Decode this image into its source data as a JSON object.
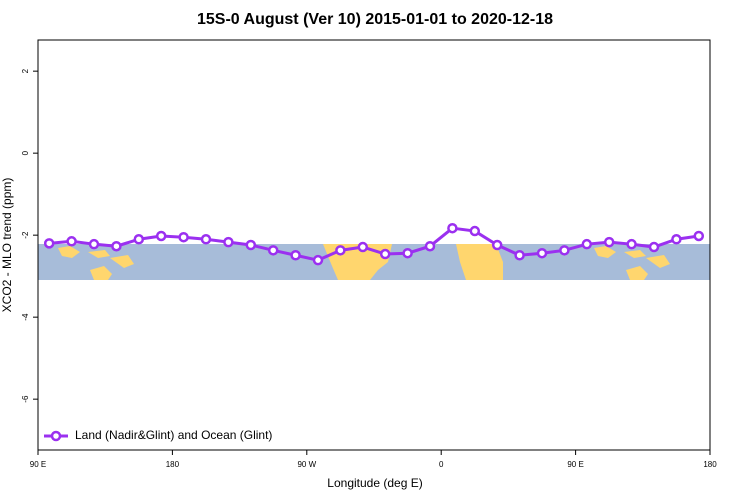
{
  "chart_data": {
    "type": "line",
    "title": "15S-0 August (Ver 10)   2015-01-01 to 2020-12-18",
    "x_label": "Longitude (deg E)",
    "y_label": "XCO2 - MLO trend (ppm)",
    "xlim": [
      90,
      540
    ],
    "xticks": [
      {
        "value": 90,
        "label": "90 E"
      },
      180,
      {
        "value": 270,
        "label": "90 W"
      },
      {
        "value": 360,
        "label": "0"
      },
      {
        "value": 450,
        "label": "90 E"
      },
      {
        "value": 540,
        "label": "180"
      }
    ],
    "ylim": [
      -7.24,
      2.76
    ],
    "yticks": [
      2,
      0,
      -2,
      -4,
      -6
    ],
    "legend": "bottom-left",
    "series": [
      {
        "name": "Land (Nadir&Glint) and Ocean (Glint)",
        "color": "#9b30f0",
        "x": [
          97.5,
          112.5,
          127.5,
          142.5,
          157.5,
          172.5,
          187.5,
          202.5,
          217.5,
          232.5,
          247.5,
          262.5,
          277.5,
          292.5,
          307.5,
          322.5,
          337.5,
          352.5,
          367.5,
          382.5,
          397.5,
          412.5,
          427.5,
          442.5,
          457.5,
          472.5,
          487.5,
          502.5,
          517.5,
          532.5
        ],
        "values": [
          -2.2,
          -2.15,
          -2.22,
          -2.27,
          -2.1,
          -2.02,
          -2.05,
          -2.1,
          -2.17,
          -2.24,
          -2.37,
          -2.49,
          -2.61,
          -2.37,
          -2.29,
          -2.46,
          -2.44,
          -2.27,
          -1.83,
          -1.9,
          -2.24,
          -2.49,
          -2.44,
          -2.37,
          -2.22,
          -2.17,
          -2.22,
          -2.29,
          -2.1,
          -2.02
        ]
      }
    ]
  }
}
